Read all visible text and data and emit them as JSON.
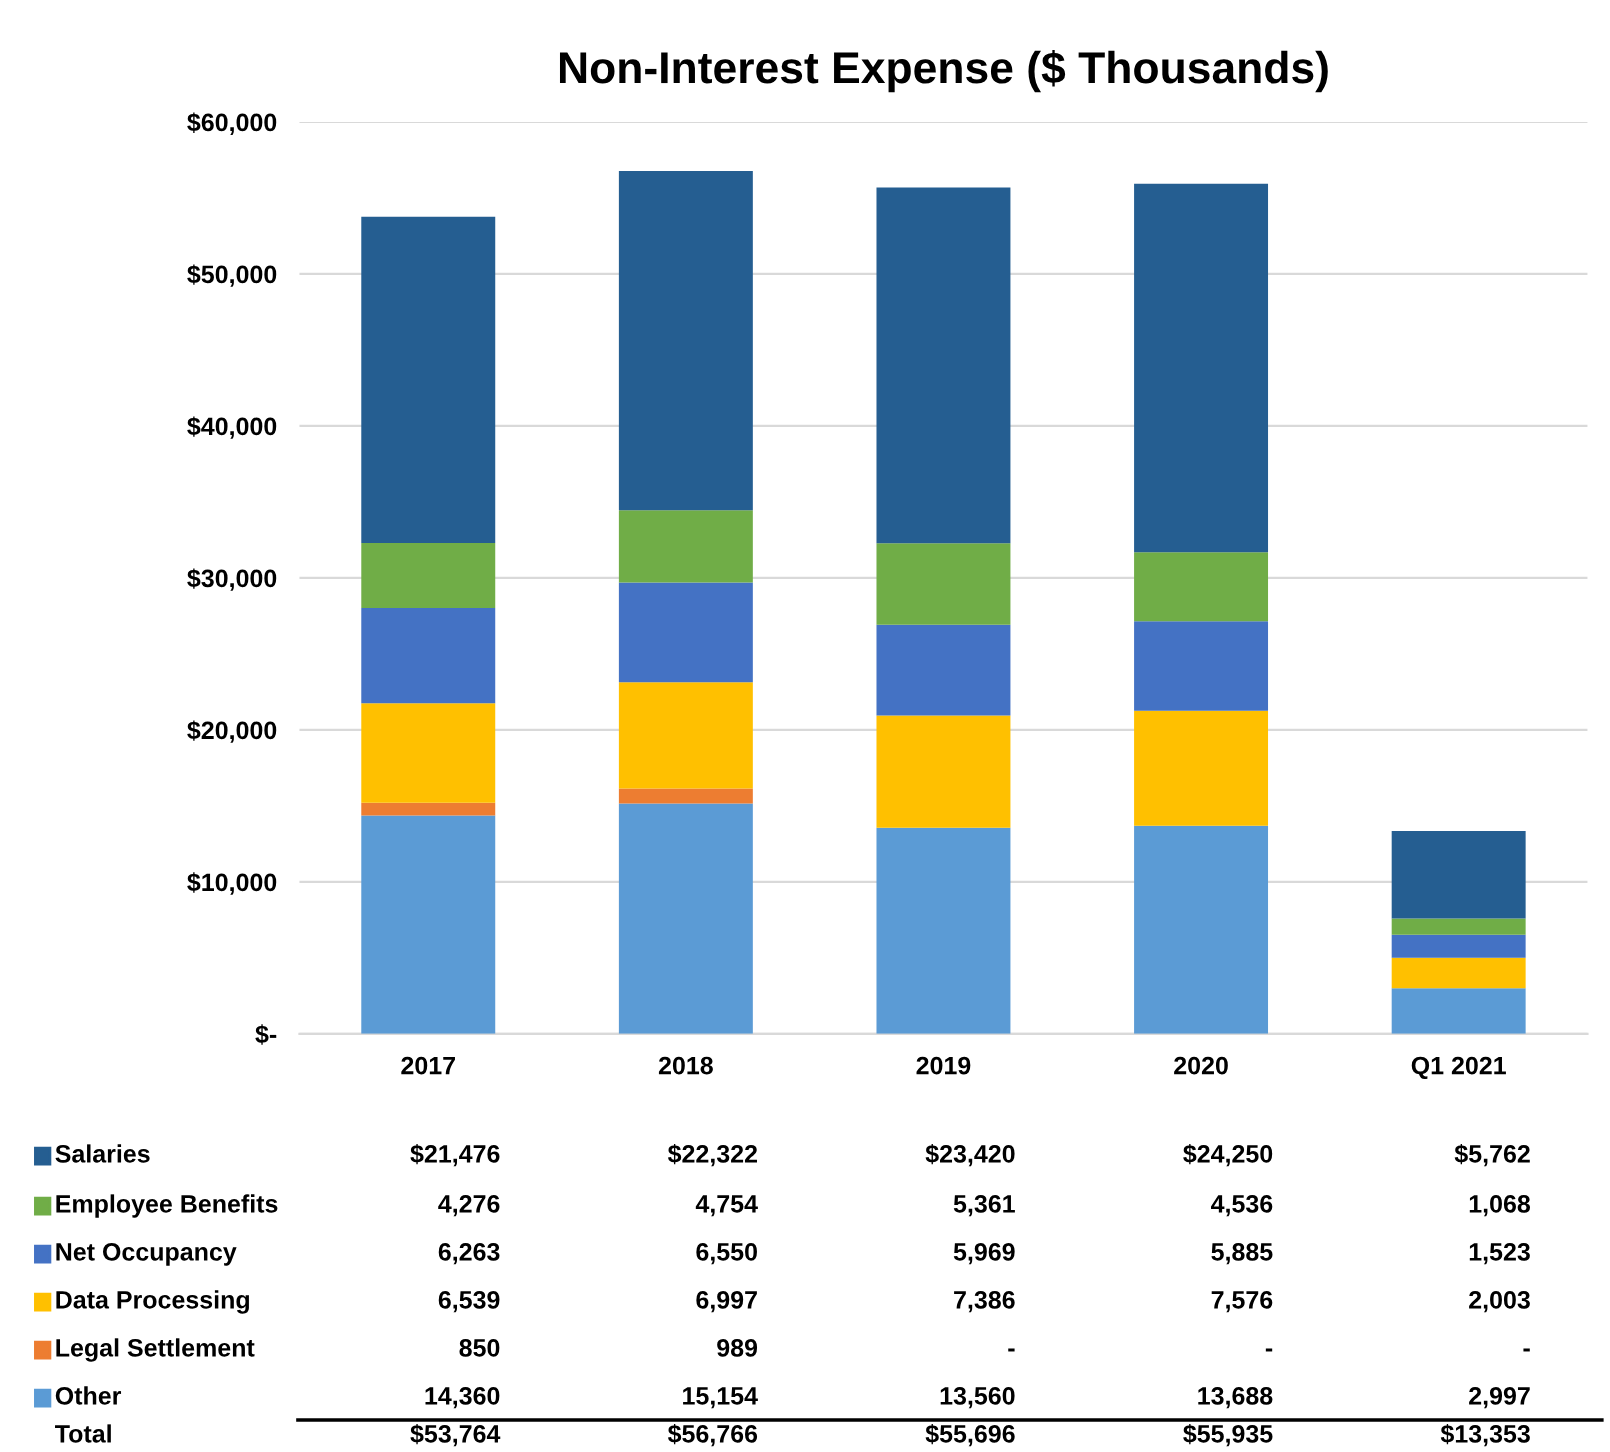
{
  "chart_data": {
    "type": "bar",
    "title": "Non-Interest Expense ($ Thousands)",
    "stacked": true,
    "categories": [
      "2017",
      "2018",
      "2019",
      "2020",
      "Q1 2021"
    ],
    "series": [
      {
        "name": "Other",
        "color": "#5b9bd5",
        "values": [
          14360,
          15154,
          13560,
          13688,
          2997
        ],
        "value_labels": [
          "14,360",
          "15,154",
          "13,560",
          "13,688",
          "2,997"
        ]
      },
      {
        "name": "Legal Settlement",
        "color": "#ed7d31",
        "values": [
          850,
          989,
          null,
          null,
          null
        ],
        "value_labels": [
          "850",
          "989",
          "-",
          "-",
          "-"
        ]
      },
      {
        "name": "Data Processing",
        "color": "#ffc000",
        "values": [
          6539,
          6997,
          7386,
          7576,
          2003
        ],
        "value_labels": [
          "6,539",
          "6,997",
          "7,386",
          "7,576",
          "2,003"
        ]
      },
      {
        "name": "Net Occupancy",
        "color": "#4472c4",
        "values": [
          6263,
          6550,
          5969,
          5885,
          1523
        ],
        "value_labels": [
          "6,263",
          "6,550",
          "5,969",
          "5,885",
          "1,523"
        ]
      },
      {
        "name": "Employee Benefits",
        "color": "#70ad47",
        "values": [
          4276,
          4754,
          5361,
          4536,
          1068
        ],
        "value_labels": [
          "4,276",
          "4,754",
          "5,361",
          "4,536",
          "1,068"
        ]
      },
      {
        "name": "Salaries",
        "color": "#255e91",
        "values": [
          21476,
          22322,
          23420,
          24250,
          5762
        ],
        "value_labels": [
          "$21,476",
          "$22,322",
          "$23,420",
          "$24,250",
          "$5,762"
        ]
      }
    ],
    "annotations": [
      "Total",
      "$53,764",
      "$56,766",
      "$55,696",
      "$55,935",
      "$13,353"
    ],
    "ylim": [
      0,
      60000
    ],
    "yticks": [
      {
        "value": 0,
        "label": "$-"
      },
      {
        "value": 10000,
        "label": "$10,000"
      },
      {
        "value": 20000,
        "label": "$20,000"
      },
      {
        "value": 30000,
        "label": "$30,000"
      },
      {
        "value": 40000,
        "label": "$40,000"
      },
      {
        "value": 50000,
        "label": "$50,000"
      },
      {
        "value": 60000,
        "label": "$60,000"
      }
    ],
    "grid": "y",
    "legend": "bottom"
  }
}
